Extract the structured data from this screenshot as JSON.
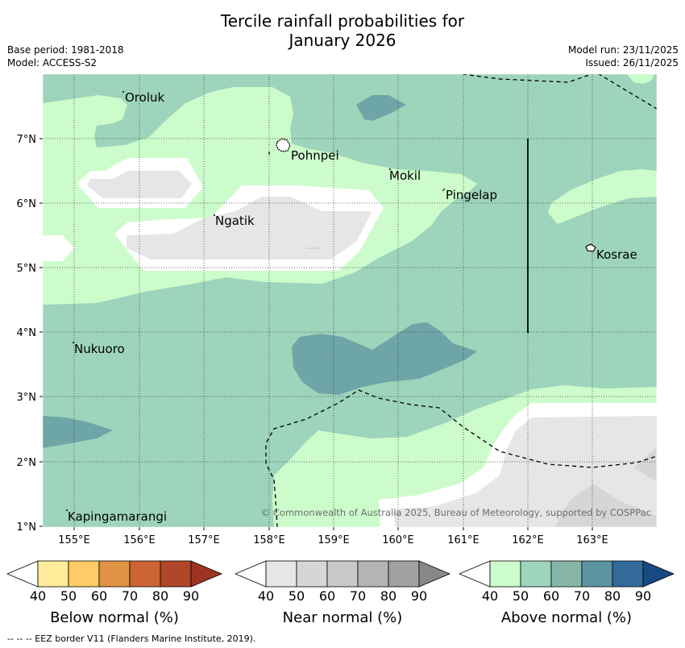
{
  "title": {
    "line1": "Tercile rainfall probabilities for",
    "line2": "January 2026"
  },
  "meta": {
    "base_period": "Base period: 1981-2018",
    "model": "Model: ACCESS-S2",
    "model_run": "Model run: 23/11/2025",
    "issued": "Issued: 26/11/2025"
  },
  "map": {
    "lat_labels": [
      "7°N",
      "6°N",
      "5°N",
      "4°N",
      "3°N",
      "2°N",
      "1°N"
    ],
    "lon_labels": [
      "155°E",
      "156°E",
      "157°E",
      "158°E",
      "159°E",
      "160°E",
      "161°E",
      "162°E",
      "163°E"
    ],
    "places": [
      "Oroluk",
      "Pohnpei",
      "Mokil",
      "Pingelap",
      "Ngatik",
      "Kosrae",
      "Nukuoro",
      "Kapingamarangi"
    ],
    "copyright": "© Commonwealth of Australia 2025, Bureau of Meteorology, supported by COSPPac"
  },
  "legends": [
    {
      "caption": "Below normal (%)",
      "ticks": [
        "40",
        "50",
        "60",
        "70",
        "80",
        "90"
      ],
      "colors": [
        "#ffffff",
        "#ffeb99",
        "#fecb66",
        "#e09344",
        "#cc6434",
        "#b0472b",
        "#9c3421"
      ]
    },
    {
      "caption": "Near normal (%)",
      "ticks": [
        "40",
        "50",
        "60",
        "70",
        "80",
        "90"
      ],
      "colors": [
        "#ffffff",
        "#e6e6e6",
        "#d6d6d6",
        "#c8c8c8",
        "#b4b4b4",
        "#a1a1a1",
        "#888888"
      ]
    },
    {
      "caption": "Above normal (%)",
      "ticks": [
        "40",
        "50",
        "60",
        "70",
        "80",
        "90"
      ],
      "colors": [
        "#ffffff",
        "#ccfccb",
        "#9ed4bb",
        "#87b6a8",
        "#5b95a3",
        "#326a9a",
        "#174a82"
      ]
    }
  ],
  "footer": "--  --  -- EEZ border V11 (Flanders Marine Institute, 2019).",
  "colors": {
    "above50": "#ccfccb",
    "above60": "#9ed4bb",
    "above70": "#6ea5a6",
    "near50": "#e6e6e6",
    "near60": "#d6d6d6",
    "white": "#ffffff",
    "eez": "#000000"
  }
}
